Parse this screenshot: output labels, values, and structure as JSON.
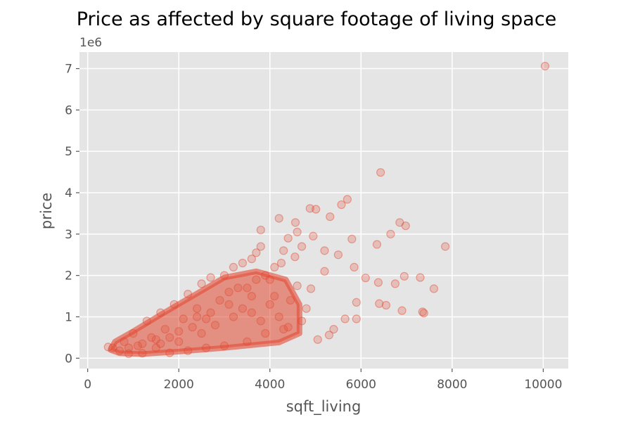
{
  "chart_data": {
    "type": "scatter",
    "title": "Price as affected by square footage of living space",
    "xlabel": "sqft_living",
    "ylabel": "price",
    "y_offset_label": "1e6",
    "xlim": [
      -180,
      10550
    ],
    "ylim": [
      -250000,
      7400000
    ],
    "x_ticks": [
      0,
      2000,
      4000,
      6000,
      8000,
      10000
    ],
    "x_tick_labels": [
      "0",
      "2000",
      "4000",
      "6000",
      "8000",
      "10000"
    ],
    "y_ticks": [
      0,
      1000000,
      2000000,
      3000000,
      4000000,
      5000000,
      6000000,
      7000000
    ],
    "y_tick_labels": [
      "0",
      "1",
      "2",
      "3",
      "4",
      "5",
      "6",
      "7"
    ],
    "grid": true,
    "style": "ggplot",
    "colors": {
      "background": "#e5e5e5",
      "point": "#e24a33"
    },
    "series": [
      {
        "values": [
          [
            10040,
            7060000
          ],
          [
            6430,
            4490000
          ],
          [
            5700,
            3840000
          ],
          [
            5570,
            3710000
          ],
          [
            4880,
            3620000
          ],
          [
            5010,
            3600000
          ],
          [
            5320,
            3420000
          ],
          [
            4200,
            3380000
          ],
          [
            3800,
            3100000
          ],
          [
            4560,
            3280000
          ],
          [
            6850,
            3280000
          ],
          [
            6980,
            3200000
          ],
          [
            7850,
            2700000
          ],
          [
            6350,
            2750000
          ],
          [
            5800,
            2880000
          ],
          [
            6650,
            3000000
          ],
          [
            4950,
            2950000
          ],
          [
            5200,
            2600000
          ],
          [
            5500,
            2500000
          ],
          [
            5850,
            2200000
          ],
          [
            7300,
            1950000
          ],
          [
            7600,
            1680000
          ],
          [
            6950,
            1980000
          ],
          [
            6100,
            1940000
          ],
          [
            6380,
            1830000
          ],
          [
            6750,
            1800000
          ],
          [
            5900,
            1350000
          ],
          [
            6400,
            1320000
          ],
          [
            6550,
            1280000
          ],
          [
            6900,
            1150000
          ],
          [
            7350,
            1120000
          ],
          [
            7380,
            1090000
          ],
          [
            5900,
            950000
          ],
          [
            5650,
            950000
          ],
          [
            5400,
            700000
          ],
          [
            5300,
            560000
          ],
          [
            5050,
            450000
          ],
          [
            4900,
            1680000
          ],
          [
            5200,
            2100000
          ],
          [
            4700,
            2700000
          ],
          [
            4550,
            2450000
          ],
          [
            4300,
            2600000
          ],
          [
            3700,
            2550000
          ],
          [
            3400,
            2300000
          ],
          [
            4100,
            2200000
          ],
          [
            4000,
            1900000
          ],
          [
            4600,
            1750000
          ],
          [
            4450,
            1400000
          ],
          [
            4800,
            1200000
          ],
          [
            4700,
            900000
          ],
          [
            4400,
            750000
          ],
          [
            3900,
            600000
          ],
          [
            3500,
            400000
          ],
          [
            3000,
            300000
          ],
          [
            2600,
            250000
          ],
          [
            2200,
            180000
          ],
          [
            1800,
            130000
          ],
          [
            1200,
            120000
          ],
          [
            900,
            110000
          ],
          [
            700,
            180000
          ],
          [
            550,
            250000
          ],
          [
            450,
            270000
          ],
          [
            800,
            400000
          ],
          [
            1000,
            600000
          ],
          [
            1300,
            900000
          ],
          [
            1600,
            1100000
          ],
          [
            1900,
            1300000
          ],
          [
            2200,
            1550000
          ],
          [
            2500,
            1800000
          ],
          [
            2700,
            1950000
          ],
          [
            3000,
            2000000
          ],
          [
            3200,
            2200000
          ],
          [
            3600,
            2400000
          ],
          [
            3800,
            2700000
          ],
          [
            3300,
            1700000
          ],
          [
            3600,
            1500000
          ],
          [
            4000,
            1300000
          ],
          [
            4200,
            1000000
          ],
          [
            4300,
            700000
          ],
          [
            3800,
            900000
          ],
          [
            3400,
            1200000
          ],
          [
            2900,
            1400000
          ],
          [
            2400,
            1200000
          ],
          [
            2100,
            950000
          ],
          [
            1700,
            700000
          ],
          [
            1400,
            500000
          ],
          [
            1100,
            300000
          ],
          [
            1500,
            250000
          ],
          [
            2000,
            400000
          ],
          [
            2500,
            600000
          ],
          [
            2800,
            800000
          ],
          [
            3200,
            1000000
          ],
          [
            3600,
            1100000
          ],
          [
            4100,
            1500000
          ],
          [
            2600,
            950000
          ],
          [
            2000,
            650000
          ],
          [
            1500,
            450000
          ],
          [
            1200,
            350000
          ],
          [
            900,
            250000
          ],
          [
            1800,
            500000
          ],
          [
            2300,
            750000
          ],
          [
            2700,
            1100000
          ],
          [
            3100,
            1300000
          ],
          [
            3500,
            1700000
          ],
          [
            3900,
            2000000
          ],
          [
            4250,
            2300000
          ],
          [
            4400,
            2900000
          ],
          [
            4600,
            3050000
          ],
          [
            3700,
            1900000
          ],
          [
            3100,
            1600000
          ],
          [
            2400,
            1000000
          ],
          [
            1600,
            350000
          ]
        ]
      }
    ]
  }
}
